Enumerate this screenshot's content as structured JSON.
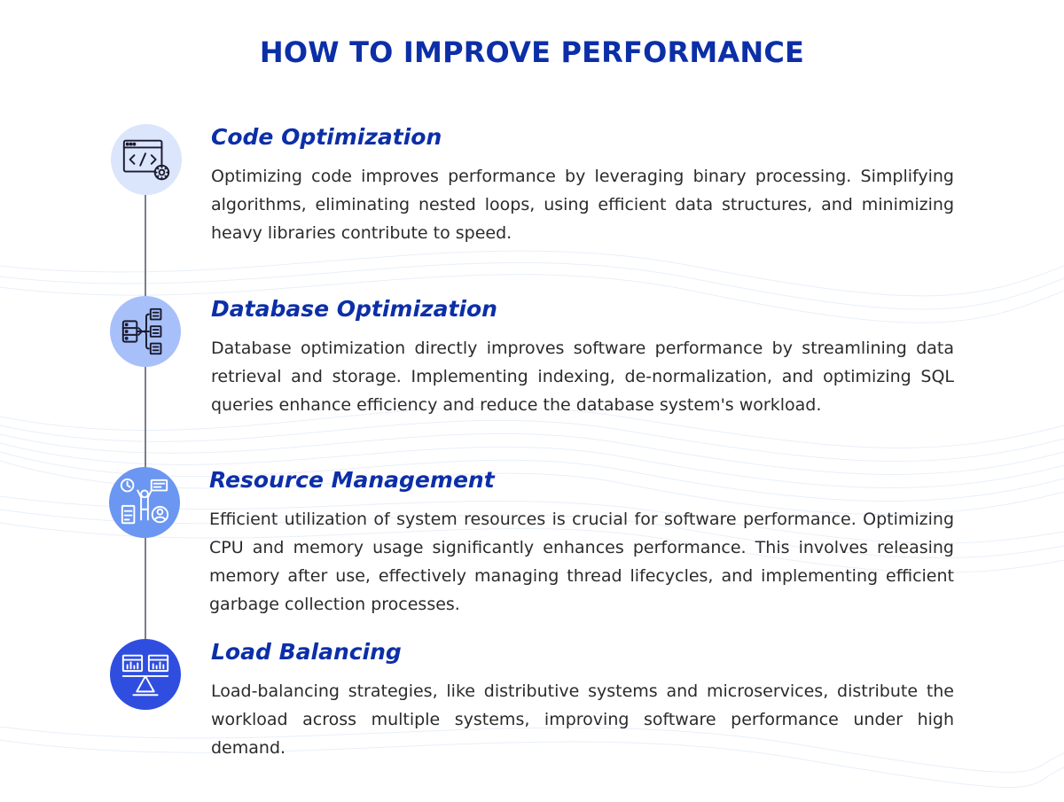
{
  "title": "HOW TO IMPROVE PERFORMANCE",
  "sections": [
    {
      "heading": "Code Optimization",
      "icon": "code-window-icon",
      "body": "Optimizing code improves performance by leveraging binary processing. Simplifying algorithms, eliminating nested loops, using efficient data structures, and minimizing heavy libraries contribute to speed."
    },
    {
      "heading": "Database Optimization",
      "icon": "database-hierarchy-icon",
      "body": "Database optimization directly improves software performance by streamlining data retrieval and storage. Implementing indexing, de-normalization, and optimizing SQL queries enhance efficiency and reduce the database system's workload."
    },
    {
      "heading": "Resource Management",
      "icon": "resource-management-icon",
      "body": "Efficient utilization of system resources is crucial for software performance. Optimizing CPU and memory usage significantly enhances performance. This involves releasing memory after use, effectively managing thread lifecycles, and implementing efficient garbage collection processes."
    },
    {
      "heading": "Load Balancing",
      "icon": "load-balancing-icon",
      "body": "Load-balancing strategies, like distributive systems and microservices, distribute the workload across multiple systems, improving software performance under high demand."
    }
  ],
  "colors": {
    "title": "#0c2fa8",
    "heading": "#0c2fa8",
    "body_text": "#2b2b2b",
    "circle_1": "#dbe5fb",
    "circle_2": "#a7c0fa",
    "circle_3": "#6b96f2",
    "circle_4": "#2f4ee0",
    "timeline": "#7a7f89"
  }
}
